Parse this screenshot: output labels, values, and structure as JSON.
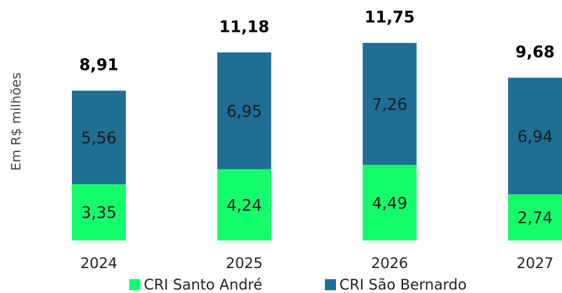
{
  "chart_data": {
    "type": "stacked_bar",
    "y_label": "Em R$ milhões",
    "categories": [
      "2024",
      "2025",
      "2026",
      "2027"
    ],
    "series": [
      {
        "name": "CRI Santo André",
        "color": "#14fb6b",
        "values": [
          3.35,
          4.24,
          4.49,
          2.74
        ],
        "value_labels": [
          "3,35",
          "4,24",
          "4,49",
          "2,74"
        ]
      },
      {
        "name": "CRI São Bernardo",
        "color": "#1f6e94",
        "values": [
          5.56,
          6.95,
          7.26,
          6.94
        ],
        "value_labels": [
          "5,56",
          "6,95",
          "7,26",
          "6,94"
        ]
      }
    ],
    "totals": [
      8.91,
      11.18,
      11.75,
      9.68
    ],
    "total_labels": [
      "8,91",
      "11,18",
      "11,75",
      "9,68"
    ],
    "ylim": [
      0,
      12
    ],
    "legend": "bottom"
  }
}
